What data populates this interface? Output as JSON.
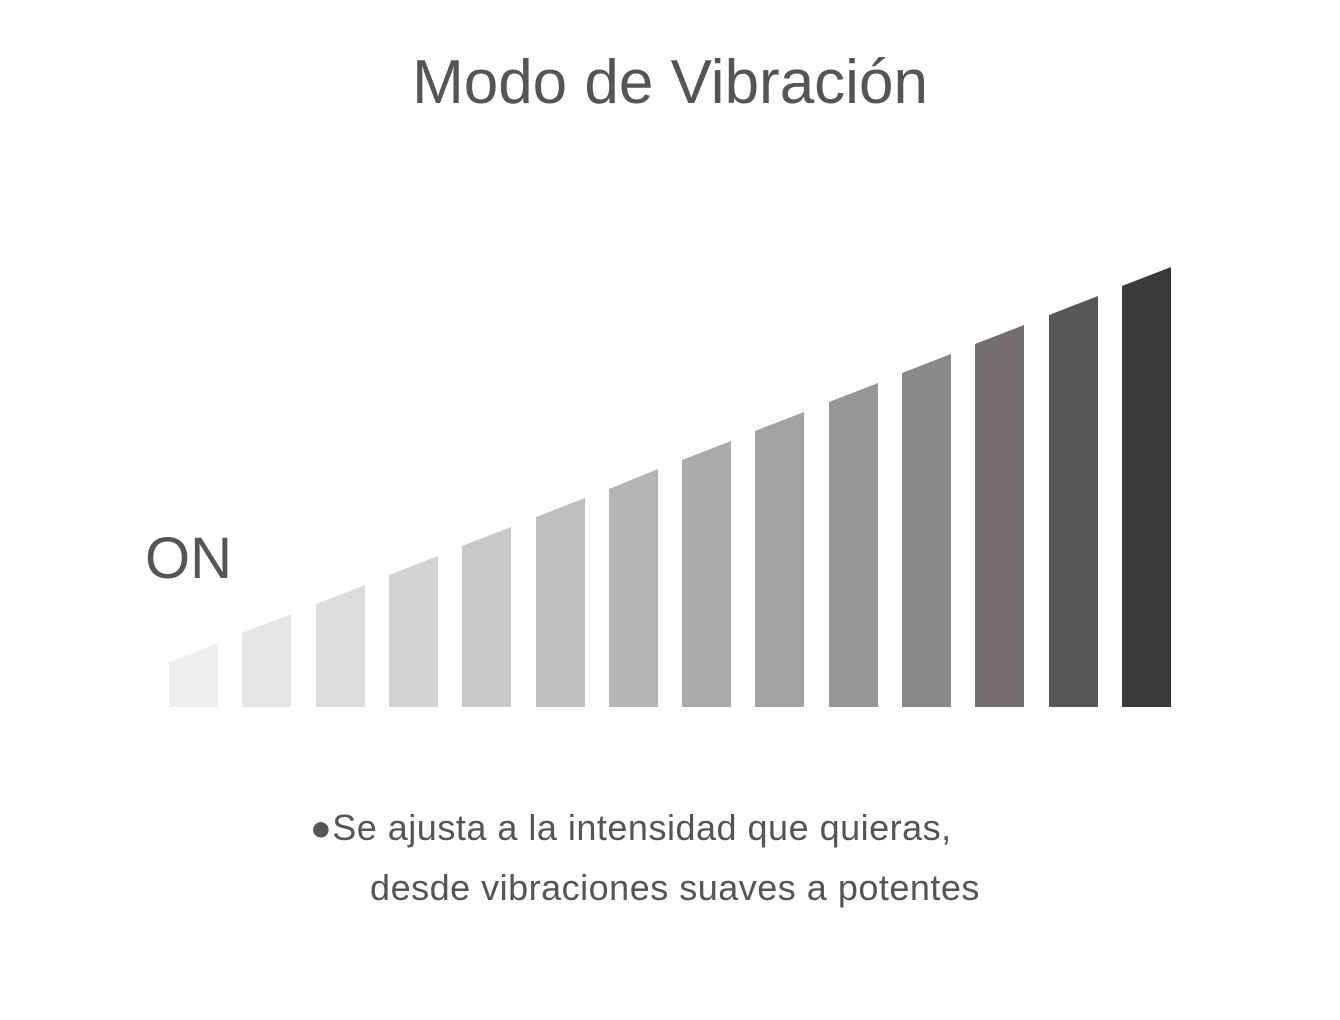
{
  "title": "Modo de Vibración",
  "label": "ON",
  "description": {
    "lines": [
      "●Se ajusta a la intensidad que quieras,",
      "desde vibraciones suaves a potentes"
    ]
  }
}
